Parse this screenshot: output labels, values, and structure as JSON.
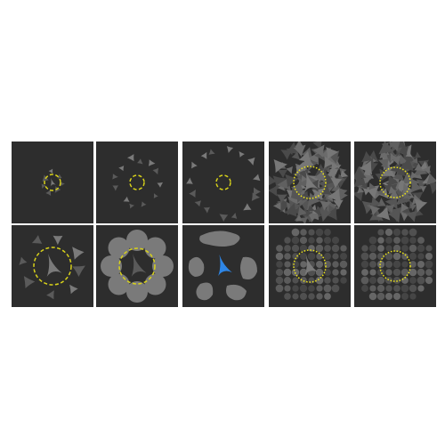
{
  "colors": {
    "background": "#ffffff",
    "panel": "#2d2d2d",
    "shape": "#7a7a7a",
    "shape_dark": "#5a5a5a",
    "ring_dashed": "#d8d21a",
    "ring_dotted": "#e8e01a",
    "target_blue": "#2e86e6"
  },
  "rows": [
    {
      "panels": [
        {
          "shape_style": "small-fragments-tight",
          "ring": "dashed",
          "target": "gray"
        },
        {
          "shape_style": "small-fragments-ring",
          "ring": "dashed",
          "target": "none"
        },
        {
          "shape_style": "small-fragments-wide-ring",
          "ring": "dashed",
          "target": "none"
        },
        {
          "shape_style": "dense-fragment-field",
          "ring": "dotted",
          "target": "gray"
        },
        {
          "shape_style": "dense-fragment-field",
          "ring": "dotted",
          "target": "none"
        }
      ]
    },
    {
      "panels": [
        {
          "shape_style": "fragments-around-large-ring",
          "ring": "dashed",
          "target": "gray"
        },
        {
          "shape_style": "large-disks",
          "ring": "dashed",
          "target": "gray"
        },
        {
          "shape_style": "large-blobs",
          "ring": "none",
          "target": "blue"
        },
        {
          "shape_style": "dense-disk-field",
          "ring": "dotted",
          "target": "gray"
        },
        {
          "shape_style": "dense-disk-field",
          "ring": "dotted",
          "target": "none"
        }
      ]
    }
  ]
}
